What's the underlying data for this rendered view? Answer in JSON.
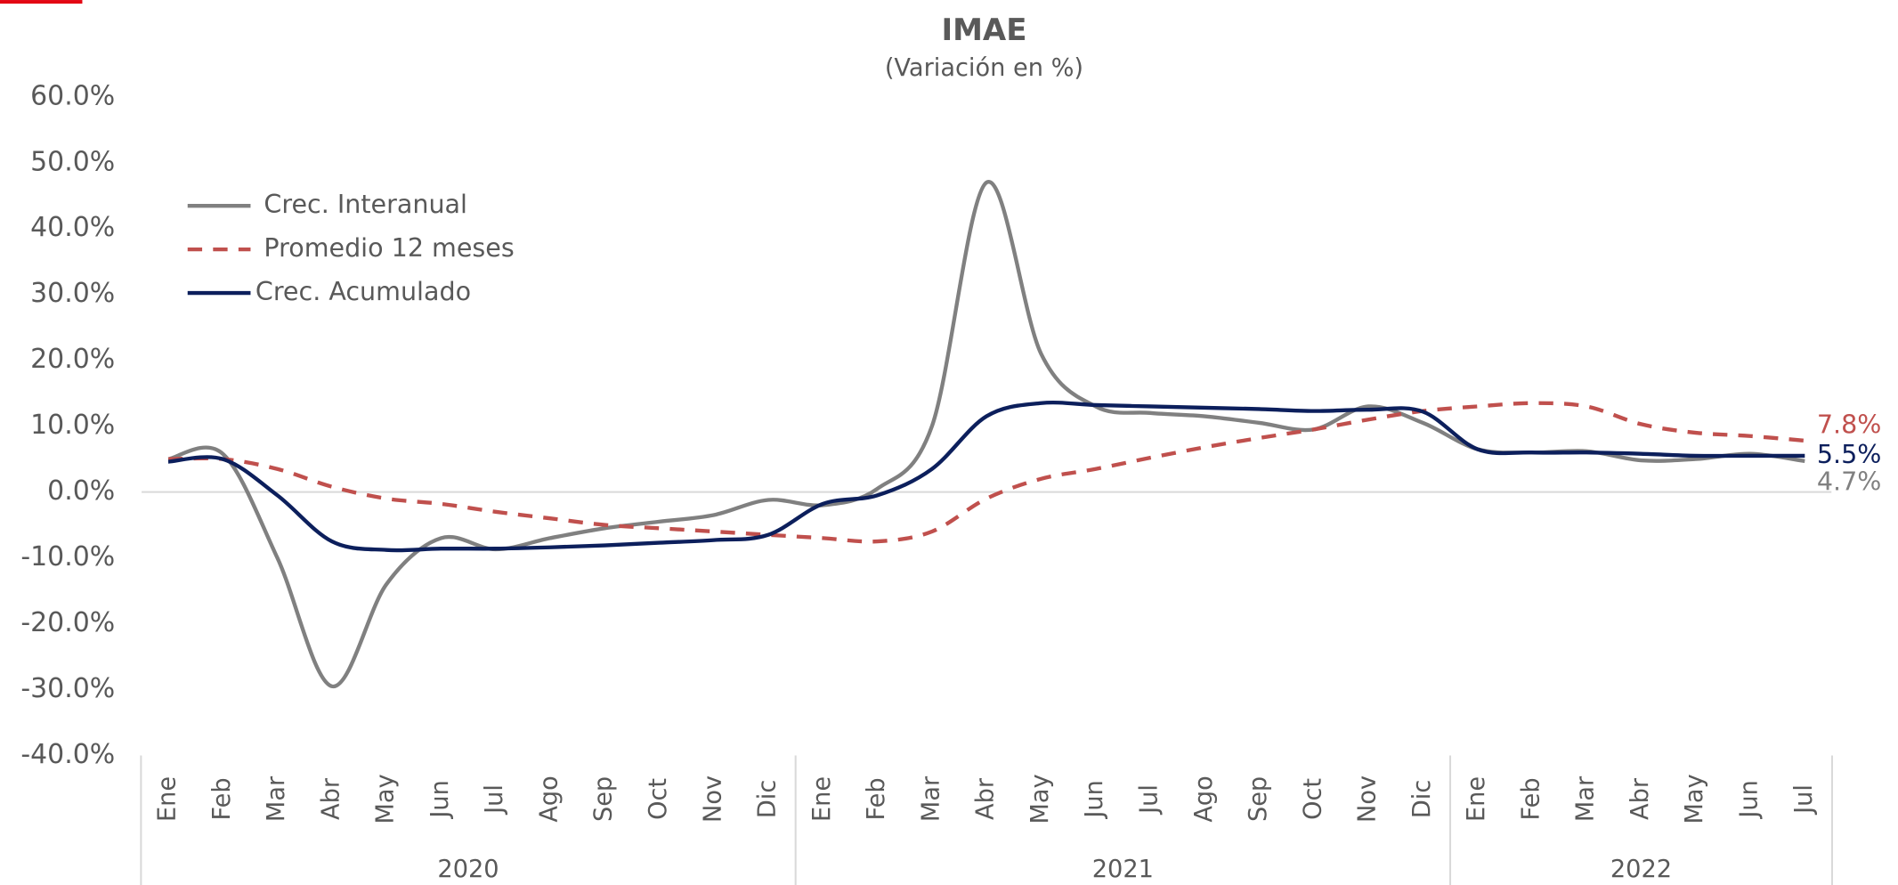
{
  "chart_data": {
    "type": "line",
    "title": "IMAE",
    "subtitle": "(Variación en %)",
    "categories": [
      "Ene",
      "Feb",
      "Mar",
      "Abr",
      "May",
      "Jun",
      "Jul",
      "Ago",
      "Sep",
      "Oct",
      "Nov",
      "Dic",
      "Ene",
      "Feb",
      "Mar",
      "Abr",
      "May",
      "Jun",
      "Jul",
      "Ago",
      "Sep",
      "Oct",
      "Nov",
      "Dic",
      "Ene",
      "Feb",
      "Mar",
      "Abr",
      "May",
      "Jun",
      "Jul"
    ],
    "years": [
      "2020",
      "2021",
      "2022"
    ],
    "ylim": [
      -40,
      60
    ],
    "yticks": [
      {
        "value": -40,
        "label": "-40.0%"
      },
      {
        "value": -30,
        "label": "-30.0%"
      },
      {
        "value": -20,
        "label": "-20.0%"
      },
      {
        "value": -10,
        "label": "-10.0%"
      },
      {
        "value": 0,
        "label": "0.0%"
      },
      {
        "value": 10,
        "label": "10.0%"
      },
      {
        "value": 20,
        "label": "20.0%"
      },
      {
        "value": 30,
        "label": "30.0%"
      },
      {
        "value": 40,
        "label": "40.0%"
      },
      {
        "value": 50,
        "label": "50.0%"
      },
      {
        "value": 60,
        "label": "60.0%"
      }
    ],
    "legend": "upper left",
    "series": [
      {
        "name": "Crec. Interanual",
        "color": "#808080",
        "dash": false,
        "values": [
          5,
          5.8,
          -10,
          -29.5,
          -14,
          -7,
          -8.7,
          -7,
          -5.5,
          -4.5,
          -3.5,
          -1.2,
          -2,
          0.5,
          10,
          47,
          21,
          13,
          12,
          11.5,
          10.5,
          9.5,
          13,
          10.5,
          6.5,
          6,
          6.2,
          4.8,
          5,
          5.8,
          4.7
        ],
        "value_labels": [
          null,
          null,
          null,
          null,
          null,
          null,
          null,
          null,
          null,
          null,
          null,
          null,
          null,
          null,
          null,
          null,
          null,
          null,
          null,
          null,
          null,
          null,
          null,
          null,
          null,
          null,
          null,
          null,
          null,
          null,
          "4.7%"
        ]
      },
      {
        "name": "Promedio 12 meses",
        "color": "#c0504d",
        "dash": true,
        "values": [
          5,
          5,
          3.5,
          0.8,
          -1,
          -1.8,
          -3,
          -4,
          -5,
          -5.5,
          -6,
          -6.5,
          -7,
          -7.5,
          -6,
          -1,
          2,
          3.5,
          5.2,
          6.8,
          8.2,
          9.5,
          11,
          12.3,
          13,
          13.5,
          13,
          10.3,
          9,
          8.5,
          7.8
        ],
        "value_labels": [
          null,
          null,
          null,
          null,
          null,
          null,
          null,
          null,
          null,
          null,
          null,
          null,
          null,
          null,
          null,
          null,
          null,
          null,
          null,
          null,
          null,
          null,
          null,
          null,
          null,
          null,
          null,
          null,
          null,
          null,
          "7.8%"
        ]
      },
      {
        "name": "Crec. Acumulado",
        "color": "#0c1f5c",
        "dash": false,
        "values": [
          4.6,
          5,
          -0.5,
          -7.5,
          -8.8,
          -8.6,
          -8.6,
          -8.4,
          -8.1,
          -7.7,
          -7.3,
          -6.5,
          -1.8,
          -0.5,
          3.5,
          11.5,
          13.5,
          13.2,
          13,
          12.8,
          12.6,
          12.3,
          12.5,
          12.2,
          6.5,
          6,
          6,
          5.8,
          5.5,
          5.5,
          5.5
        ],
        "value_labels": [
          null,
          null,
          null,
          null,
          null,
          null,
          null,
          null,
          null,
          null,
          null,
          null,
          null,
          null,
          null,
          null,
          null,
          null,
          null,
          null,
          null,
          null,
          null,
          null,
          null,
          null,
          null,
          null,
          null,
          null,
          "5.5%"
        ]
      }
    ]
  }
}
